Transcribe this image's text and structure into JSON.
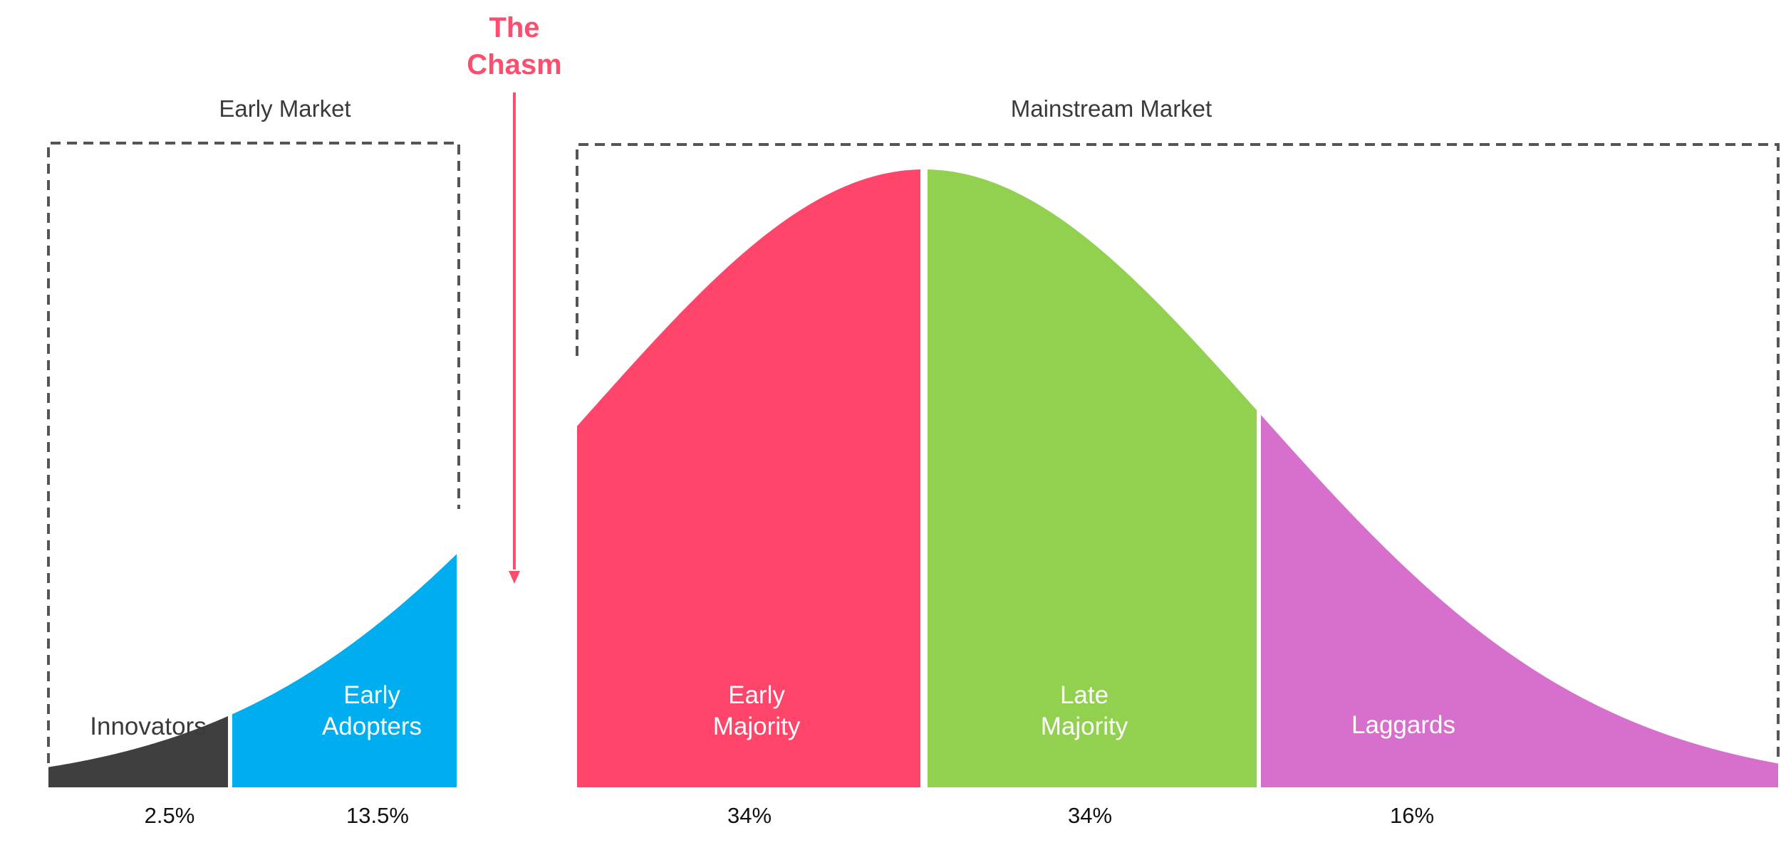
{
  "chasm": {
    "title_line1": "The",
    "title_line2": "Chasm",
    "color": "#ff4d6d"
  },
  "markets": {
    "early": {
      "label": "Early Market",
      "border_color": "#555555"
    },
    "mainstream": {
      "label": "Mainstream Market",
      "border_color": "#555555"
    }
  },
  "segments": [
    {
      "key": "innovators",
      "line1": "Innovators",
      "line2": "",
      "percent": "2.5%",
      "share": 2.5,
      "color": "#3f3f3f",
      "label_color": "#3a3a3a"
    },
    {
      "key": "early_adopters",
      "line1": "Early",
      "line2": "Adopters",
      "percent": "13.5%",
      "share": 13.5,
      "color": "#00aeef",
      "label_color": "#ffffff"
    },
    {
      "key": "early_majority",
      "line1": "Early",
      "line2": "Majority",
      "percent": "34%",
      "share": 34,
      "color": "#ff4569",
      "label_color": "#ffffff"
    },
    {
      "key": "late_majority",
      "line1": "Late",
      "line2": "Majority",
      "percent": "34%",
      "share": 34,
      "color": "#92d050",
      "label_color": "#ffffff"
    },
    {
      "key": "laggards",
      "line1": "Laggards",
      "line2": "",
      "percent": "16%",
      "share": 16,
      "color": "#d670cc",
      "label_color": "#ffffff"
    }
  ]
}
